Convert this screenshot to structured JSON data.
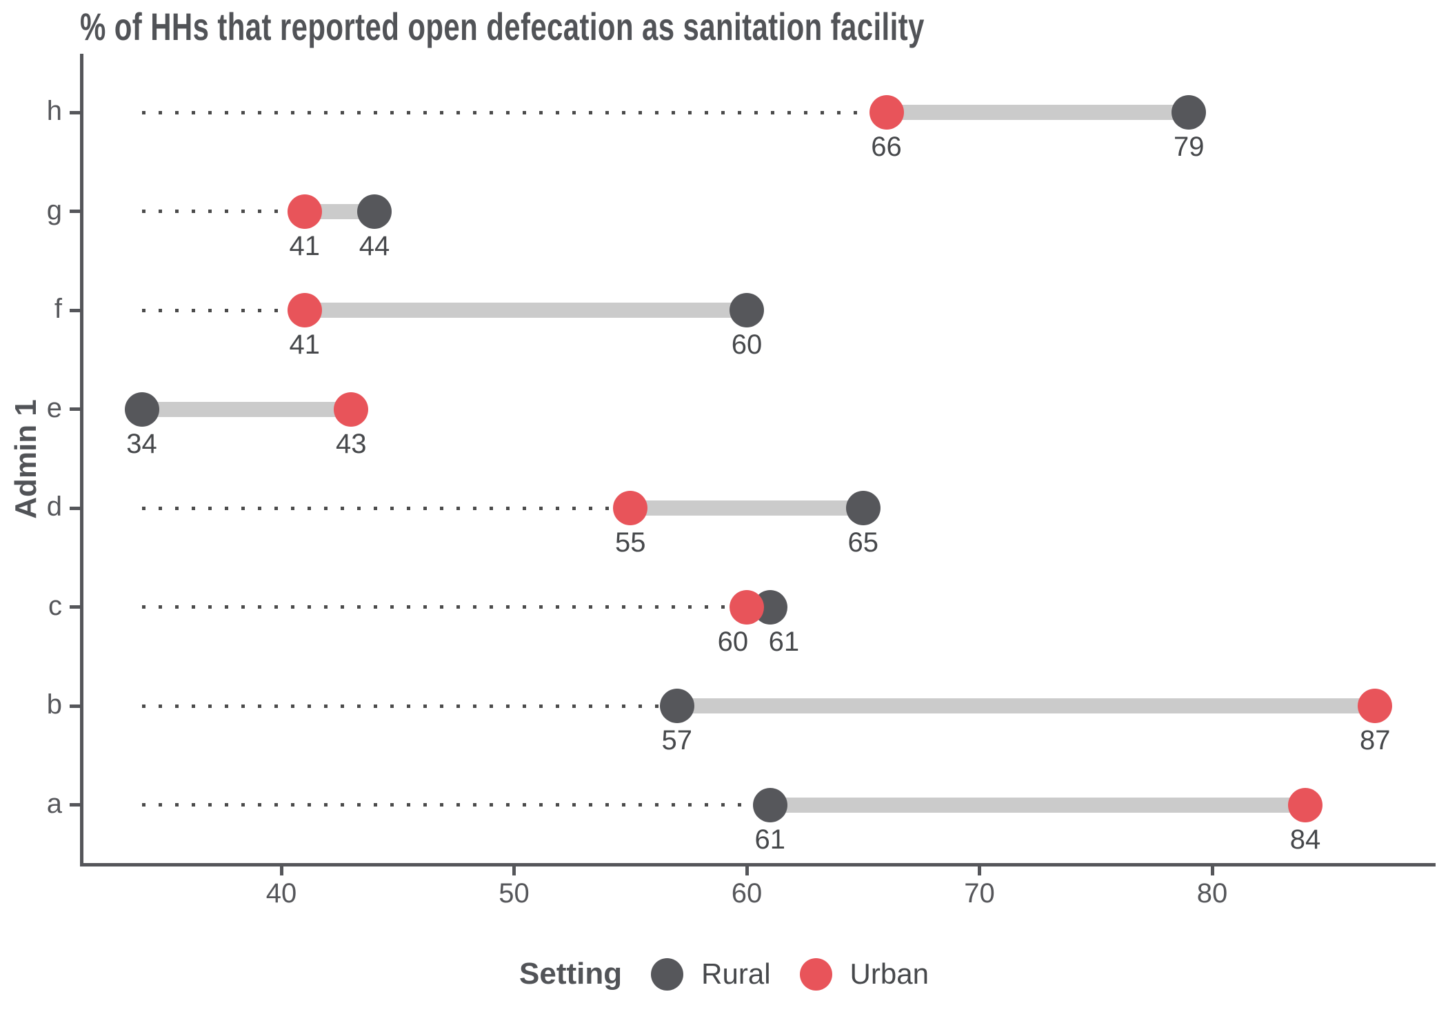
{
  "title": "% of HHs that reported open defecation as sanitation facility",
  "axes": {
    "y_label": "Admin 1",
    "x_tick_labels": [
      "40",
      "50",
      "60",
      "70",
      "80"
    ]
  },
  "legend": {
    "title": "Setting",
    "items": [
      {
        "label": "Rural",
        "color": "#56575B"
      },
      {
        "label": "Urban",
        "color": "#E8545A"
      }
    ]
  },
  "colors": {
    "rural": "#56575B",
    "urban": "#E8545A",
    "connector_bar": "#CBCBCB",
    "leader_dots": "#4B4B4B",
    "axis": "#55565A",
    "text": "#515357"
  },
  "chart_data": {
    "type": "dumbbell",
    "title": "% of HHs that reported open defecation as sanitation facility",
    "xlabel": "",
    "ylabel": "Admin 1",
    "categories": [
      "h",
      "g",
      "f",
      "e",
      "d",
      "c",
      "b",
      "a"
    ],
    "series": [
      {
        "name": "Rural",
        "color": "#56575B",
        "values": [
          79,
          44,
          60,
          34,
          65,
          61,
          57,
          61
        ]
      },
      {
        "name": "Urban",
        "color": "#E8545A",
        "values": [
          66,
          41,
          41,
          43,
          55,
          60,
          87,
          84
        ]
      }
    ],
    "x_ticks": [
      40,
      50,
      60,
      70,
      80
    ],
    "xlim": [
      34,
      88
    ],
    "leader_origin": 34,
    "grid": false,
    "legend_position": "bottom",
    "value_labels_shown": true
  }
}
